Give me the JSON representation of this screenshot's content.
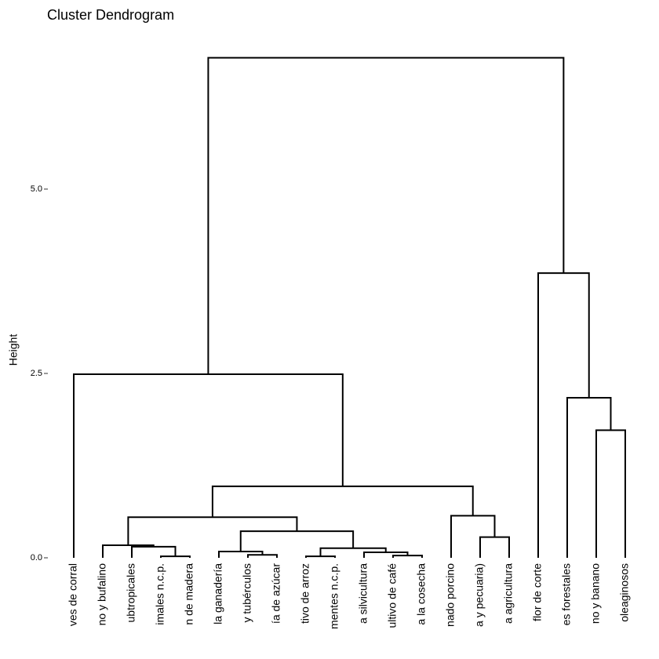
{
  "chart_data": {
    "type": "dendrogram",
    "title": "Cluster Dendrogram",
    "y_label": "Height",
    "labels": [
      "ves de corral",
      "no y bufalino",
      "ubtropicales",
      "imales n.c.p.",
      "n de madera",
      "la ganadería",
      "y tubérculos",
      "ía de azúcar",
      "tivo de arroz",
      "mentes n.c.p.",
      "a silvicultura",
      "ultivo de café",
      "a la cosecha",
      "nado porcino",
      "a y pecuaria)",
      "a agricultura",
      "flor de corte",
      "es forestales",
      "no y banano",
      "oleaginosos"
    ],
    "merges": [
      {
        "children": [
          -4,
          -5
        ],
        "height": 0.02
      },
      {
        "children": [
          -9,
          -10
        ],
        "height": 0.02
      },
      {
        "children": [
          -12,
          -13
        ],
        "height": 0.03
      },
      {
        "children": [
          -7,
          -8
        ],
        "height": 0.04
      },
      {
        "children": [
          -11,
          3
        ],
        "height": 0.075
      },
      {
        "children": [
          -6,
          4
        ],
        "height": 0.085
      },
      {
        "children": [
          2,
          5
        ],
        "height": 0.13
      },
      {
        "children": [
          -3,
          1
        ],
        "height": 0.15
      },
      {
        "children": [
          -2,
          8
        ],
        "height": 0.17
      },
      {
        "children": [
          -15,
          -16
        ],
        "height": 0.28
      },
      {
        "children": [
          6,
          7
        ],
        "height": 0.36
      },
      {
        "children": [
          9,
          11
        ],
        "height": 0.55
      },
      {
        "children": [
          -14,
          10
        ],
        "height": 0.57
      },
      {
        "children": [
          12,
          13
        ],
        "height": 0.97
      },
      {
        "children": [
          -19,
          -20
        ],
        "height": 1.73
      },
      {
        "children": [
          -18,
          15
        ],
        "height": 2.17
      },
      {
        "children": [
          -1,
          14
        ],
        "height": 2.49
      },
      {
        "children": [
          -17,
          16
        ],
        "height": 3.86
      },
      {
        "children": [
          17,
          18
        ],
        "height": 6.78
      }
    ],
    "ylim": [
      0,
      7
    ],
    "yticks": [
      {
        "value": 0,
        "label": "0.0"
      },
      2.5,
      {
        "value": 5,
        "label": "5.0"
      }
    ],
    "color": "#000000"
  }
}
